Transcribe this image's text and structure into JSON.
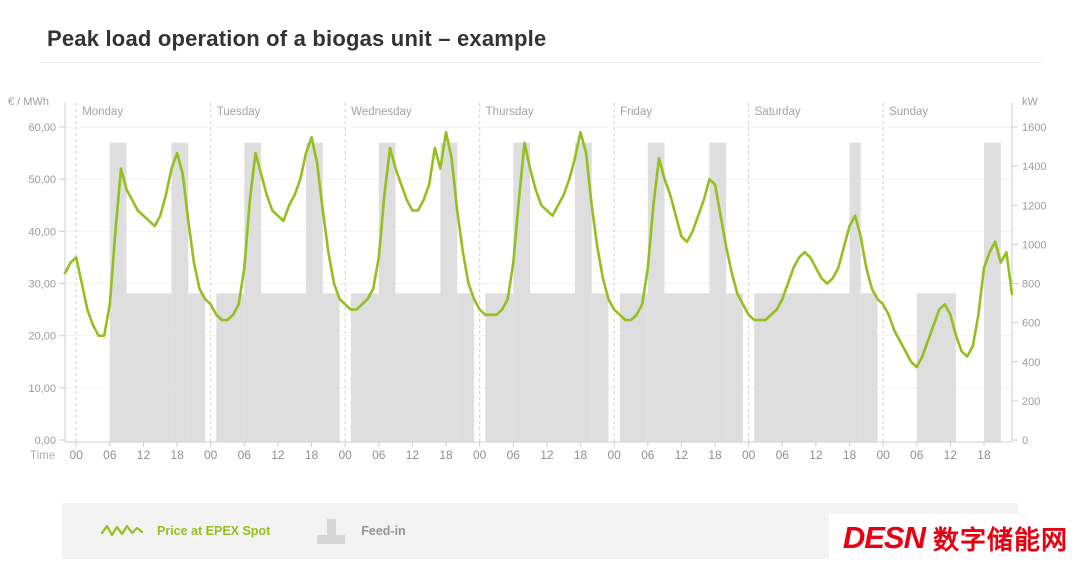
{
  "header": {
    "title": "Peak load operation of a biogas unit – example"
  },
  "legend": {
    "price_label": "Price at EPEX Spot",
    "feedin_label": "Feed-in"
  },
  "logo": {
    "latin": "DESN",
    "cjk": "数字储能网",
    "color": "#e60012"
  },
  "colors": {
    "accent_green": "#93c01e",
    "bar_gray": "#dedede",
    "logo_red": "#e60012",
    "axis_gray": "#cfcfcf",
    "text_gray": "#9b9b9b"
  },
  "chart_data": {
    "type": "line+bar",
    "title": "Peak load operation of a biogas unit – example",
    "x": {
      "title": "Time",
      "days": [
        "Monday",
        "Tuesday",
        "Wednesday",
        "Thursday",
        "Friday",
        "Saturday",
        "Sunday"
      ],
      "hours_per_day": 24,
      "tick_hours": [
        0,
        6,
        12,
        18
      ],
      "tick_labels": [
        "00",
        "06",
        "12",
        "18"
      ],
      "lead_hours": 2
    },
    "left_axis": {
      "title": "€ / MWh",
      "min": 0,
      "max": 60,
      "tick_labels_top_to_bottom": [
        "60,00",
        "50,00",
        "40,00",
        "30,00",
        "20,00",
        "10,00",
        "0,00"
      ]
    },
    "right_axis": {
      "title": "kW",
      "min": 0,
      "max": 1600,
      "tick_labels_top_to_bottom": [
        "1600",
        "1400",
        "1200",
        "1000",
        "800",
        "600",
        "400",
        "200",
        "0"
      ]
    },
    "grid": {
      "horizontal": true,
      "day_separators": "dashed"
    },
    "legend_position": "bottom",
    "series": [
      {
        "name": "Price at EPEX Spot",
        "type": "line",
        "axis": "left",
        "unit": "€/MWh",
        "color": "#93c01e",
        "hours_per_point": 1,
        "values": [
          32,
          34,
          35,
          30,
          25,
          22,
          20,
          20,
          26,
          40,
          52,
          48,
          46,
          44,
          43,
          42,
          41,
          43,
          47,
          52,
          55,
          51,
          42,
          34,
          29,
          27,
          26,
          24,
          23,
          23,
          24,
          26,
          33,
          46,
          55,
          51,
          47,
          44,
          43,
          42,
          45,
          47,
          50,
          55,
          58,
          53,
          44,
          36,
          30,
          27,
          26,
          25,
          25,
          26,
          27,
          29,
          35,
          47,
          56,
          52,
          49,
          46,
          44,
          44,
          46,
          49,
          56,
          52,
          59,
          54,
          44,
          36,
          30,
          27,
          25,
          24,
          24,
          24,
          25,
          27,
          34,
          46,
          57,
          52,
          48,
          45,
          44,
          43,
          45,
          47,
          50,
          54,
          59,
          55,
          45,
          37,
          31,
          27,
          25,
          24,
          23,
          23,
          24,
          26,
          33,
          45,
          54,
          50,
          47,
          43,
          39,
          38,
          40,
          43,
          46,
          50,
          49,
          43,
          37,
          32,
          28,
          26,
          24,
          23,
          23,
          23,
          24,
          25,
          27,
          30,
          33,
          35,
          36,
          35,
          33,
          31,
          30,
          31,
          33,
          37,
          41,
          43,
          39,
          33,
          29,
          27,
          26,
          24,
          21,
          19,
          17,
          15,
          14,
          16,
          19,
          22,
          25,
          26,
          24,
          20,
          17,
          16,
          18,
          24,
          33,
          36,
          38,
          34,
          36,
          28
        ]
      },
      {
        "name": "Feed-in",
        "type": "bar",
        "axis": "right",
        "unit": "kW",
        "color": "#dedede",
        "hours_per_point": 1,
        "values": [
          0,
          0,
          0,
          0,
          0,
          0,
          0,
          0,
          1520,
          1520,
          1520,
          750,
          750,
          750,
          750,
          750,
          750,
          750,
          750,
          1520,
          1520,
          1520,
          750,
          750,
          750,
          0,
          0,
          750,
          750,
          750,
          750,
          750,
          1520,
          1520,
          1520,
          750,
          750,
          750,
          750,
          750,
          750,
          750,
          750,
          1520,
          1520,
          1520,
          750,
          750,
          750,
          0,
          0,
          750,
          750,
          750,
          750,
          750,
          1520,
          1520,
          1520,
          750,
          750,
          750,
          750,
          750,
          750,
          750,
          750,
          1520,
          1520,
          1520,
          750,
          750,
          750,
          0,
          0,
          750,
          750,
          750,
          750,
          750,
          1520,
          1520,
          1520,
          750,
          750,
          750,
          750,
          750,
          750,
          750,
          750,
          1520,
          1520,
          1520,
          750,
          750,
          750,
          0,
          0,
          750,
          750,
          750,
          750,
          750,
          1520,
          1520,
          1520,
          750,
          750,
          750,
          750,
          750,
          750,
          750,
          750,
          1520,
          1520,
          1520,
          750,
          750,
          750,
          0,
          0,
          750,
          750,
          750,
          750,
          750,
          750,
          750,
          750,
          750,
          750,
          750,
          750,
          750,
          750,
          750,
          750,
          750,
          1520,
          1520,
          750,
          750,
          750,
          0,
          0,
          0,
          0,
          0,
          0,
          0,
          750,
          750,
          750,
          750,
          750,
          750,
          750,
          0,
          0,
          0,
          0,
          0,
          1520,
          1520,
          1520,
          0,
          0,
          0
        ]
      }
    ]
  }
}
